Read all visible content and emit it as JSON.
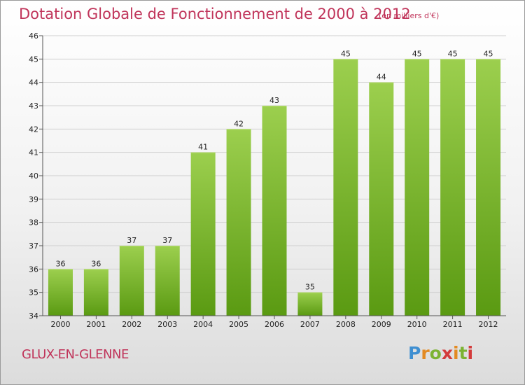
{
  "header": {
    "title": "Dotation Globale de Fonctionnement de 2000 à 2012",
    "subtitle": "(en milliers d'€)"
  },
  "footer": {
    "commune": "GLUX-EN-GLENNE",
    "logo_letters": [
      "P",
      "r",
      "o",
      "x",
      "i",
      "t",
      "i"
    ]
  },
  "colors": {
    "title": "#c0345a",
    "bar_top": "#9ccf4e",
    "bar_bottom": "#5a9a12",
    "grid": "#cfcfcf"
  },
  "chart_data": {
    "type": "bar",
    "title": "Dotation Globale de Fonctionnement de 2000 à 2012",
    "subtitle": "(en milliers d'€)",
    "xlabel": "",
    "ylabel": "",
    "categories": [
      "2000",
      "2001",
      "2002",
      "2003",
      "2004",
      "2005",
      "2006",
      "2007",
      "2008",
      "2009",
      "2010",
      "2011",
      "2012"
    ],
    "values": [
      36,
      36,
      37,
      37,
      41,
      42,
      43,
      35,
      45,
      44,
      45,
      45,
      45
    ],
    "ylim": [
      34,
      46
    ],
    "yticks": [
      34,
      35,
      36,
      37,
      38,
      39,
      40,
      41,
      42,
      43,
      44,
      45,
      46
    ],
    "grid": true,
    "legend": "none"
  }
}
